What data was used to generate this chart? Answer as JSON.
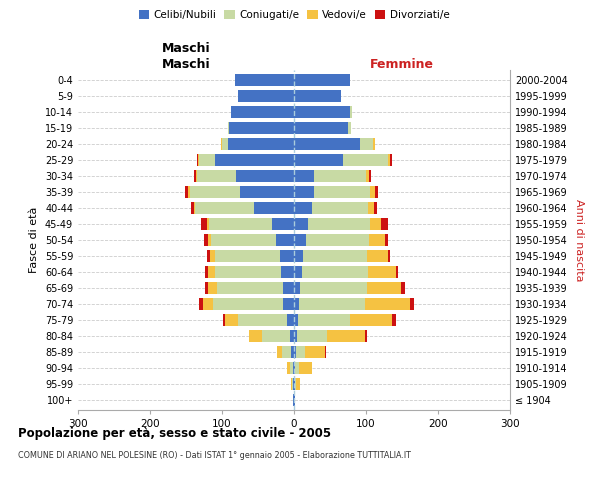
{
  "age_groups": [
    "100+",
    "95-99",
    "90-94",
    "85-89",
    "80-84",
    "75-79",
    "70-74",
    "65-69",
    "60-64",
    "55-59",
    "50-54",
    "45-49",
    "40-44",
    "35-39",
    "30-34",
    "25-29",
    "20-24",
    "15-19",
    "10-14",
    "5-9",
    "0-4"
  ],
  "birth_years": [
    "≤ 1904",
    "1905-1909",
    "1910-1914",
    "1915-1919",
    "1920-1924",
    "1925-1929",
    "1930-1934",
    "1935-1939",
    "1940-1944",
    "1945-1949",
    "1950-1954",
    "1955-1959",
    "1960-1964",
    "1965-1969",
    "1970-1974",
    "1975-1979",
    "1980-1984",
    "1985-1989",
    "1990-1994",
    "1995-1999",
    "2000-2004"
  ],
  "maschi": {
    "celibi": [
      1,
      1,
      2,
      4,
      6,
      10,
      15,
      15,
      18,
      20,
      25,
      30,
      55,
      75,
      80,
      110,
      92,
      90,
      88,
      78,
      82
    ],
    "coniugati": [
      0,
      2,
      4,
      12,
      38,
      68,
      98,
      92,
      92,
      90,
      90,
      88,
      82,
      70,
      55,
      22,
      8,
      2,
      0,
      0,
      0
    ],
    "vedovi": [
      0,
      1,
      4,
      8,
      18,
      18,
      14,
      12,
      9,
      7,
      5,
      3,
      2,
      2,
      1,
      2,
      1,
      0,
      0,
      0,
      0
    ],
    "divorziati": [
      0,
      0,
      0,
      0,
      1,
      2,
      5,
      4,
      4,
      4,
      5,
      8,
      4,
      4,
      3,
      1,
      0,
      0,
      0,
      0,
      0
    ]
  },
  "femmine": {
    "nubili": [
      1,
      1,
      2,
      3,
      4,
      6,
      7,
      9,
      11,
      12,
      16,
      20,
      25,
      28,
      28,
      68,
      92,
      75,
      78,
      65,
      78
    ],
    "coniugate": [
      0,
      2,
      5,
      12,
      42,
      72,
      92,
      92,
      92,
      90,
      88,
      85,
      78,
      78,
      72,
      62,
      18,
      4,
      2,
      0,
      0
    ],
    "vedove": [
      1,
      5,
      18,
      28,
      52,
      58,
      62,
      48,
      38,
      28,
      22,
      16,
      8,
      6,
      4,
      4,
      2,
      0,
      0,
      0,
      0
    ],
    "divorziate": [
      0,
      0,
      0,
      1,
      4,
      5,
      6,
      5,
      4,
      4,
      4,
      10,
      4,
      5,
      3,
      2,
      1,
      0,
      0,
      0,
      0
    ]
  },
  "colors": {
    "celibi": "#4472c4",
    "coniugati": "#c8daa4",
    "vedovi": "#f5c242",
    "divorziati": "#cc1111"
  },
  "title": "Popolazione per età, sesso e stato civile - 2005",
  "subtitle": "COMUNE DI ARIANO NEL POLESINE (RO) - Dati ISTAT 1° gennaio 2005 - Elaborazione TUTTITALIA.IT",
  "ylabel_left": "Fasce di età",
  "ylabel_right": "Anni di nascita",
  "xlabel_left": "Maschi",
  "xlabel_right": "Femmine",
  "xlim": 300,
  "background_color": "#ffffff",
  "grid_color": "#cccccc",
  "legend_labels": [
    "Celibi/Nubili",
    "Coniugati/e",
    "Vedovi/e",
    "Divorziati/e"
  ]
}
